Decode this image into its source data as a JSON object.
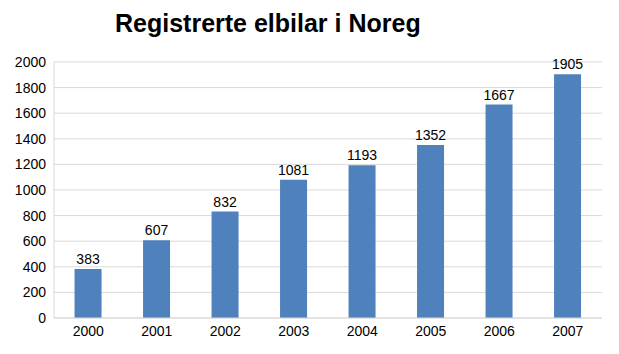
{
  "chart_data": {
    "type": "bar",
    "title": "Registrerte elbilar i Noreg",
    "categories": [
      "2000",
      "2001",
      "2002",
      "2003",
      "2004",
      "2005",
      "2006",
      "2007"
    ],
    "values": [
      383,
      607,
      832,
      1081,
      1193,
      1352,
      1667,
      1905
    ],
    "color": "#4f81bd",
    "ylim": [
      0,
      2000
    ],
    "yticks": [
      0,
      200,
      400,
      600,
      800,
      1000,
      1200,
      1400,
      1600,
      1800,
      2000
    ],
    "grid": true,
    "data_labels": true
  }
}
